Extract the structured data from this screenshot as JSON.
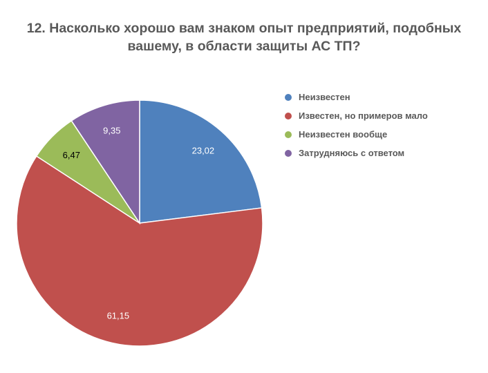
{
  "chart_data": {
    "type": "pie",
    "title_lines": [
      "12. Насколько хорошо вам знаком опыт предприятий, подобных",
      "вашему, в области защиты АС ТП?"
    ],
    "categories": [
      "Неизвестен",
      "Известен, но примеров мало",
      "Неизвестен вообще",
      "Затрудняюсь с ответом"
    ],
    "values": [
      23.02,
      61.15,
      6.47,
      9.35
    ],
    "data_labels": [
      "23,02",
      "61,15",
      "6,47",
      "9,35"
    ],
    "colors": [
      "#4f81bd",
      "#c0504d",
      "#9bbb59",
      "#8064a2"
    ],
    "label_colors": [
      "#ffffff",
      "#ffffff",
      "#000000",
      "#ffffff"
    ],
    "legend_position": "right"
  }
}
